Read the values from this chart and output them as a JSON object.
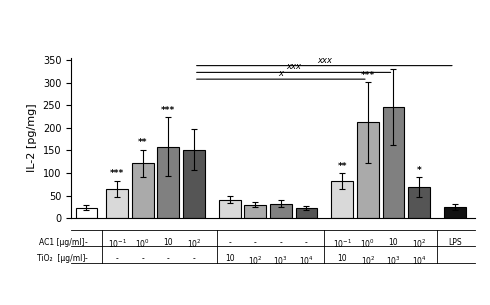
{
  "bar_values": [
    23,
    65,
    122,
    158,
    152,
    41,
    30,
    32,
    22,
    82,
    212,
    246,
    68,
    25
  ],
  "bar_errors": [
    5,
    18,
    30,
    65,
    45,
    8,
    6,
    7,
    4,
    18,
    90,
    85,
    22,
    6
  ],
  "bar_colors": [
    "#ffffff",
    "#d9d9d9",
    "#aaaaaa",
    "#808080",
    "#555555",
    "#d9d9d9",
    "#aaaaaa",
    "#808080",
    "#555555",
    "#d9d9d9",
    "#aaaaaa",
    "#808080",
    "#555555",
    "#111111"
  ],
  "row1_label": "AC1 [μg/ml]",
  "row2_label": "TiO₂  [μg/ml]",
  "ylabel": "IL-2 [pg/mg]",
  "ylim": [
    0,
    355
  ],
  "yticks": [
    0,
    50,
    100,
    150,
    200,
    250,
    300,
    350
  ]
}
